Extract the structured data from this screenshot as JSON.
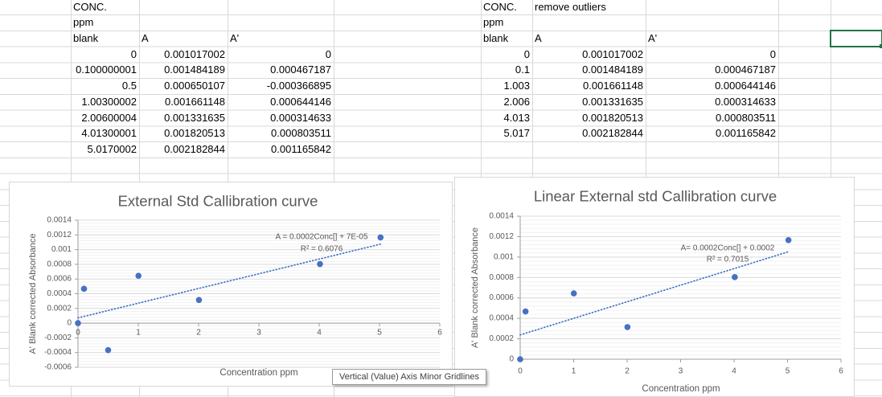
{
  "tooltip": {
    "text": "Vertical (Value) Axis Minor Gridlines"
  },
  "spreadsheet": {
    "left_table": {
      "title": "CONC.",
      "unit": "ppm",
      "columns": [
        "blank",
        "A",
        "A'"
      ],
      "rows": [
        [
          "0",
          "0.001017002",
          "0"
        ],
        [
          "0.100000001",
          "0.001484189",
          "0.000467187"
        ],
        [
          "0.5",
          "0.000650107",
          "-0.000366895"
        ],
        [
          "1.00300002",
          "0.001661148",
          "0.000644146"
        ],
        [
          "2.00600004",
          "0.001331635",
          "0.000314633"
        ],
        [
          "4.01300001",
          "0.001820513",
          "0.000803511"
        ],
        [
          "5.0170002",
          "0.002182844",
          "0.001165842"
        ]
      ]
    },
    "right_table": {
      "title": "CONC.",
      "note": "remove outliers",
      "unit": "ppm",
      "columns": [
        "blank",
        "A",
        "A'"
      ],
      "rows": [
        [
          "0",
          "0.001017002",
          "0"
        ],
        [
          "0.1",
          "0.001484189",
          "0.000467187"
        ],
        [
          "1.003",
          "0.001661148",
          "0.000644146"
        ],
        [
          "2.006",
          "0.001331635",
          "0.000314633"
        ],
        [
          "4.013",
          "0.001820513",
          "0.000803511"
        ],
        [
          "5.017",
          "0.002182844",
          "0.001165842"
        ]
      ]
    },
    "selection": {
      "row": 3,
      "column": "J"
    }
  },
  "colors": {
    "marker_blue": "#4472C4",
    "chart_text_gray": "#595959",
    "selection_green": "#217346",
    "major_gridline": "#d9d9d9",
    "minor_gridline": "#f1f1f1",
    "axis_line": "#9e9e9e",
    "sheet_gridline": "#d8d8d8"
  },
  "chart_data": [
    {
      "type": "scatter",
      "title": "External Std Callibration curve",
      "xlabel": "Concentration ppm",
      "ylabel": "A' Blank corrected Absorbance",
      "x": [
        0,
        0.1,
        0.5,
        1.003,
        2.006,
        4.013,
        5.017
      ],
      "y": [
        0,
        0.000467187,
        -0.000366895,
        0.000644146,
        0.000314633,
        0.000803511,
        0.001165842
      ],
      "xlim": [
        0,
        6
      ],
      "ylim": [
        -0.0006,
        0.0014
      ],
      "x_tick_labels": [
        "0",
        "1",
        "2",
        "3",
        "4",
        "5",
        "6"
      ],
      "y_tick_labels": [
        "0.0014",
        "0.0012",
        "0.001",
        "0.0008",
        "0.0006",
        "0.0004",
        "0.0002",
        "0",
        "-0.0002",
        "-0.0004",
        "-0.0006"
      ],
      "y_major_unit": 0.0002,
      "y_minor_unit": 4e-05,
      "gridlines": "horizontal major + minor",
      "legend": "none",
      "trendline": {
        "style": "dotted",
        "x_start": 0,
        "y_start": 7.17e-05,
        "x_end": 5.017,
        "y_end": 0.0010746
      },
      "equation": "A = 0.0002Conc[] + 7E-05",
      "r_squared": "R² = 0.6076"
    },
    {
      "type": "scatter",
      "title": "Linear External std Callibration curve",
      "xlabel": "Concentration ppm",
      "ylabel": "A' Blank corrected Absorbance",
      "x": [
        0,
        0.1,
        1.003,
        2.006,
        4.013,
        5.017
      ],
      "y": [
        0,
        0.000467187,
        0.000644146,
        0.000314633,
        0.000803511,
        0.001165842
      ],
      "xlim": [
        0,
        6
      ],
      "ylim": [
        0,
        0.0014
      ],
      "x_tick_labels": [
        "0",
        "1",
        "2",
        "3",
        "4",
        "5",
        "6"
      ],
      "y_tick_labels": [
        "0.0014",
        "0.0012",
        "0.001",
        "0.0008",
        "0.0006",
        "0.0004",
        "0.0002",
        "0"
      ],
      "y_major_unit": 0.0002,
      "y_minor_unit": 4e-05,
      "gridlines": "horizontal major + minor",
      "legend": "none",
      "trendline": {
        "style": "dotted",
        "x_start": 0,
        "y_start": 0.000238,
        "x_end": 5.017,
        "y_end": 0.001052
      },
      "equation": "A= 0.0002Conc[] + 0.0002",
      "r_squared": "R² = 0.7015"
    }
  ]
}
